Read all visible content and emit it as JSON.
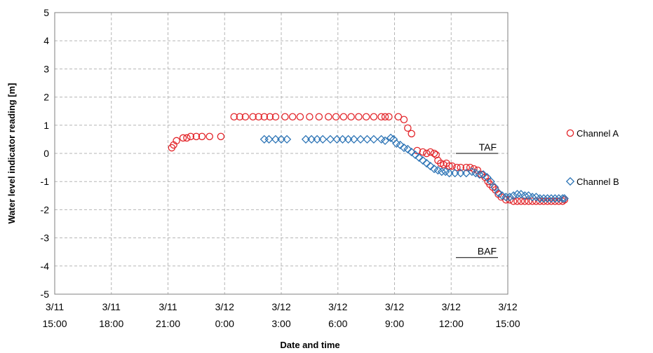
{
  "chart_data": {
    "type": "scatter",
    "xlabel": "Date and time",
    "ylabel": "Water level indicator reading [m]",
    "ylim": [
      -5,
      5
    ],
    "yticks": [
      5,
      4,
      3,
      2,
      1,
      0,
      -1,
      -2,
      -3,
      -4,
      -5
    ],
    "x_axis": {
      "range_hours": [
        0,
        24
      ],
      "tick_hours": [
        0,
        3,
        6,
        9,
        12,
        15,
        18,
        21,
        24
      ],
      "tick_labels": [
        {
          "date": "3/11",
          "time": "15:00"
        },
        {
          "date": "3/11",
          "time": "18:00"
        },
        {
          "date": "3/11",
          "time": "21:00"
        },
        {
          "date": "3/12",
          "time": "0:00"
        },
        {
          "date": "3/12",
          "time": "3:00"
        },
        {
          "date": "3/12",
          "time": "6:00"
        },
        {
          "date": "3/12",
          "time": "9:00"
        },
        {
          "date": "3/12",
          "time": "12:00"
        },
        {
          "date": "3/12",
          "time": "15:00"
        }
      ]
    },
    "grid": true,
    "legend_position": "right",
    "annotations": [
      {
        "label": "TAF",
        "y": 0
      },
      {
        "label": "BAF",
        "y": -3.7
      }
    ],
    "series": [
      {
        "name": "Channel A",
        "marker": "circle",
        "color": "#e3262b",
        "points": [
          [
            6.2,
            0.2
          ],
          [
            6.3,
            0.3
          ],
          [
            6.45,
            0.45
          ],
          [
            6.8,
            0.55
          ],
          [
            7.0,
            0.55
          ],
          [
            7.2,
            0.6
          ],
          [
            7.5,
            0.6
          ],
          [
            7.8,
            0.6
          ],
          [
            8.2,
            0.6
          ],
          [
            8.8,
            0.6
          ],
          [
            9.5,
            1.3
          ],
          [
            9.8,
            1.3
          ],
          [
            10.1,
            1.3
          ],
          [
            10.5,
            1.3
          ],
          [
            10.8,
            1.3
          ],
          [
            11.1,
            1.3
          ],
          [
            11.4,
            1.3
          ],
          [
            11.7,
            1.3
          ],
          [
            12.2,
            1.3
          ],
          [
            12.6,
            1.3
          ],
          [
            13.0,
            1.3
          ],
          [
            13.5,
            1.3
          ],
          [
            14.0,
            1.3
          ],
          [
            14.5,
            1.3
          ],
          [
            14.9,
            1.3
          ],
          [
            15.3,
            1.3
          ],
          [
            15.7,
            1.3
          ],
          [
            16.1,
            1.3
          ],
          [
            16.5,
            1.3
          ],
          [
            16.9,
            1.3
          ],
          [
            17.3,
            1.3
          ],
          [
            17.5,
            1.3
          ],
          [
            17.7,
            1.3
          ],
          [
            18.2,
            1.3
          ],
          [
            18.5,
            1.2
          ],
          [
            18.7,
            0.9
          ],
          [
            18.9,
            0.7
          ],
          [
            19.2,
            0.1
          ],
          [
            19.5,
            0.05
          ],
          [
            19.7,
            0.0
          ],
          [
            19.9,
            0.05
          ],
          [
            20.1,
            0.0
          ],
          [
            20.2,
            -0.05
          ],
          [
            20.3,
            -0.25
          ],
          [
            20.45,
            -0.35
          ],
          [
            20.6,
            -0.4
          ],
          [
            20.75,
            -0.35
          ],
          [
            20.9,
            -0.45
          ],
          [
            21.05,
            -0.45
          ],
          [
            21.3,
            -0.5
          ],
          [
            21.5,
            -0.5
          ],
          [
            21.8,
            -0.5
          ],
          [
            22.0,
            -0.5
          ],
          [
            22.2,
            -0.55
          ],
          [
            22.4,
            -0.6
          ],
          [
            22.6,
            -0.75
          ],
          [
            22.8,
            -0.85
          ],
          [
            22.95,
            -1.0
          ],
          [
            23.05,
            -1.1
          ],
          [
            23.2,
            -1.2
          ],
          [
            23.35,
            -1.3
          ],
          [
            23.5,
            -1.45
          ],
          [
            23.65,
            -1.55
          ],
          [
            23.9,
            -1.65
          ],
          [
            24.1,
            -1.65
          ],
          [
            24.3,
            -1.7
          ],
          [
            24.5,
            -1.7
          ],
          [
            24.7,
            -1.7
          ],
          [
            24.9,
            -1.7
          ],
          [
            25.1,
            -1.7
          ],
          [
            25.3,
            -1.7
          ],
          [
            25.5,
            -1.7
          ],
          [
            25.7,
            -1.7
          ],
          [
            25.9,
            -1.7
          ],
          [
            26.1,
            -1.7
          ],
          [
            26.3,
            -1.7
          ],
          [
            26.5,
            -1.7
          ],
          [
            26.7,
            -1.7
          ],
          [
            26.9,
            -1.7
          ],
          [
            27.0,
            -1.65
          ]
        ]
      },
      {
        "name": "Channel B",
        "marker": "diamond",
        "color": "#2e75b6",
        "points": [
          [
            11.1,
            0.5
          ],
          [
            11.35,
            0.5
          ],
          [
            11.7,
            0.5
          ],
          [
            12.0,
            0.5
          ],
          [
            12.3,
            0.5
          ],
          [
            13.3,
            0.5
          ],
          [
            13.6,
            0.5
          ],
          [
            13.9,
            0.5
          ],
          [
            14.2,
            0.5
          ],
          [
            14.6,
            0.5
          ],
          [
            14.95,
            0.5
          ],
          [
            15.25,
            0.5
          ],
          [
            15.55,
            0.5
          ],
          [
            15.85,
            0.5
          ],
          [
            16.2,
            0.5
          ],
          [
            16.55,
            0.5
          ],
          [
            16.9,
            0.5
          ],
          [
            17.3,
            0.5
          ],
          [
            17.5,
            0.45
          ],
          [
            17.8,
            0.55
          ],
          [
            17.95,
            0.5
          ],
          [
            18.1,
            0.35
          ],
          [
            18.3,
            0.3
          ],
          [
            18.5,
            0.2
          ],
          [
            18.7,
            0.15
          ],
          [
            18.9,
            0.05
          ],
          [
            19.1,
            -0.05
          ],
          [
            19.3,
            -0.15
          ],
          [
            19.5,
            -0.25
          ],
          [
            19.7,
            -0.35
          ],
          [
            19.9,
            -0.45
          ],
          [
            20.1,
            -0.55
          ],
          [
            20.3,
            -0.6
          ],
          [
            20.5,
            -0.65
          ],
          [
            20.7,
            -0.65
          ],
          [
            20.9,
            -0.7
          ],
          [
            21.2,
            -0.7
          ],
          [
            21.5,
            -0.7
          ],
          [
            21.8,
            -0.7
          ],
          [
            22.1,
            -0.65
          ],
          [
            22.3,
            -0.7
          ],
          [
            22.5,
            -0.75
          ],
          [
            22.7,
            -0.75
          ],
          [
            22.9,
            -0.85
          ],
          [
            23.1,
            -1.0
          ],
          [
            23.3,
            -1.2
          ],
          [
            23.5,
            -1.4
          ],
          [
            23.7,
            -1.5
          ],
          [
            23.9,
            -1.55
          ],
          [
            24.1,
            -1.55
          ],
          [
            24.3,
            -1.5
          ],
          [
            24.5,
            -1.45
          ],
          [
            24.7,
            -1.45
          ],
          [
            24.9,
            -1.5
          ],
          [
            25.1,
            -1.5
          ],
          [
            25.3,
            -1.55
          ],
          [
            25.5,
            -1.55
          ],
          [
            25.7,
            -1.6
          ],
          [
            25.9,
            -1.6
          ],
          [
            26.1,
            -1.6
          ],
          [
            26.3,
            -1.6
          ],
          [
            26.5,
            -1.6
          ],
          [
            26.7,
            -1.6
          ],
          [
            26.9,
            -1.6
          ],
          [
            27.0,
            -1.6
          ]
        ]
      }
    ]
  }
}
